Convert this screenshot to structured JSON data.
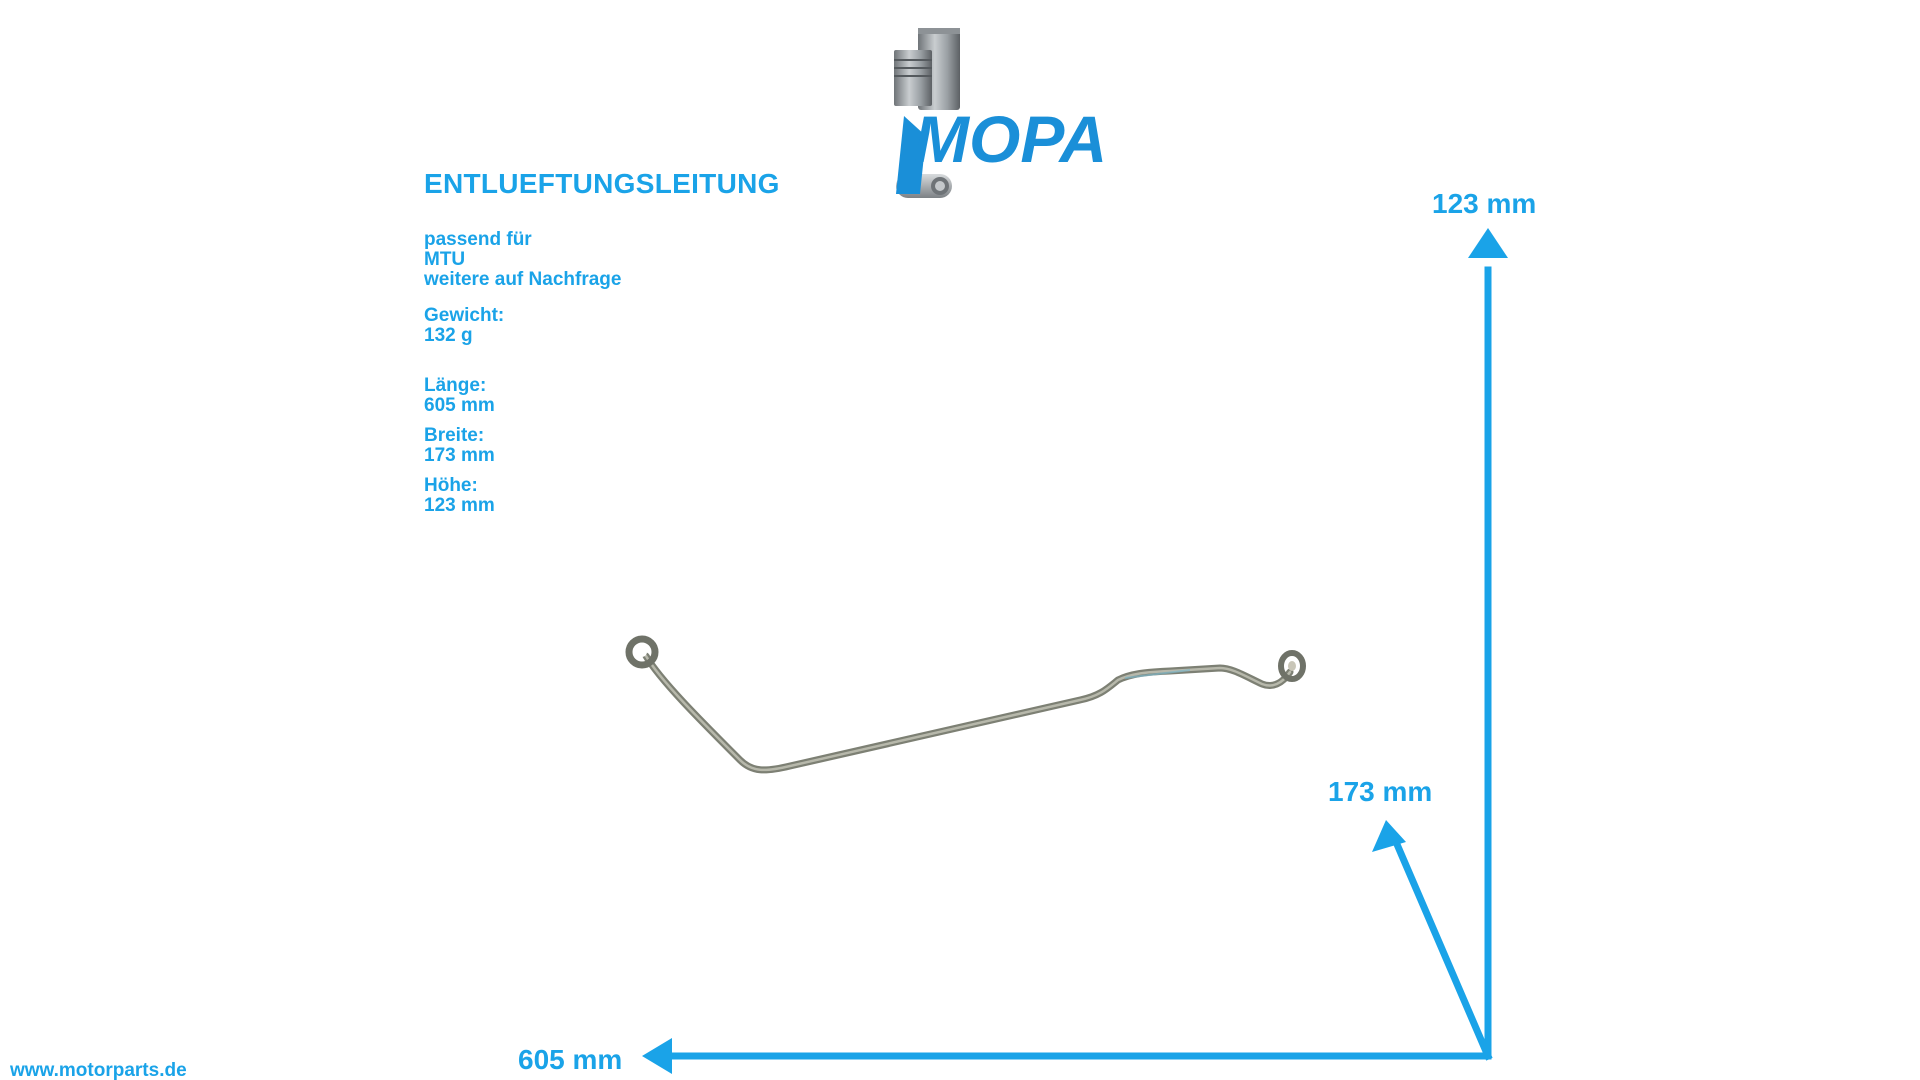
{
  "logo": {
    "text": "MOPA",
    "icon": "piston-icon"
  },
  "product": {
    "title": "ENTLUEFTUNGSLEITUNG"
  },
  "fitment": {
    "label": "passend für",
    "make": "MTU",
    "note": "weitere auf Nachfrage"
  },
  "weight": {
    "label": "Gewicht:",
    "value": "132 g"
  },
  "dimensions": {
    "length_label": "Länge:",
    "length_value": "605 mm",
    "width_label": "Breite:",
    "width_value": "173 mm",
    "height_label": "Höhe:",
    "height_value": "123 mm"
  },
  "arrows": {
    "height_text": "123 mm",
    "width_text": "173 mm",
    "length_text": "605 mm",
    "color": "#1aa3e8"
  },
  "footer": {
    "website": "www.motorparts.de"
  }
}
